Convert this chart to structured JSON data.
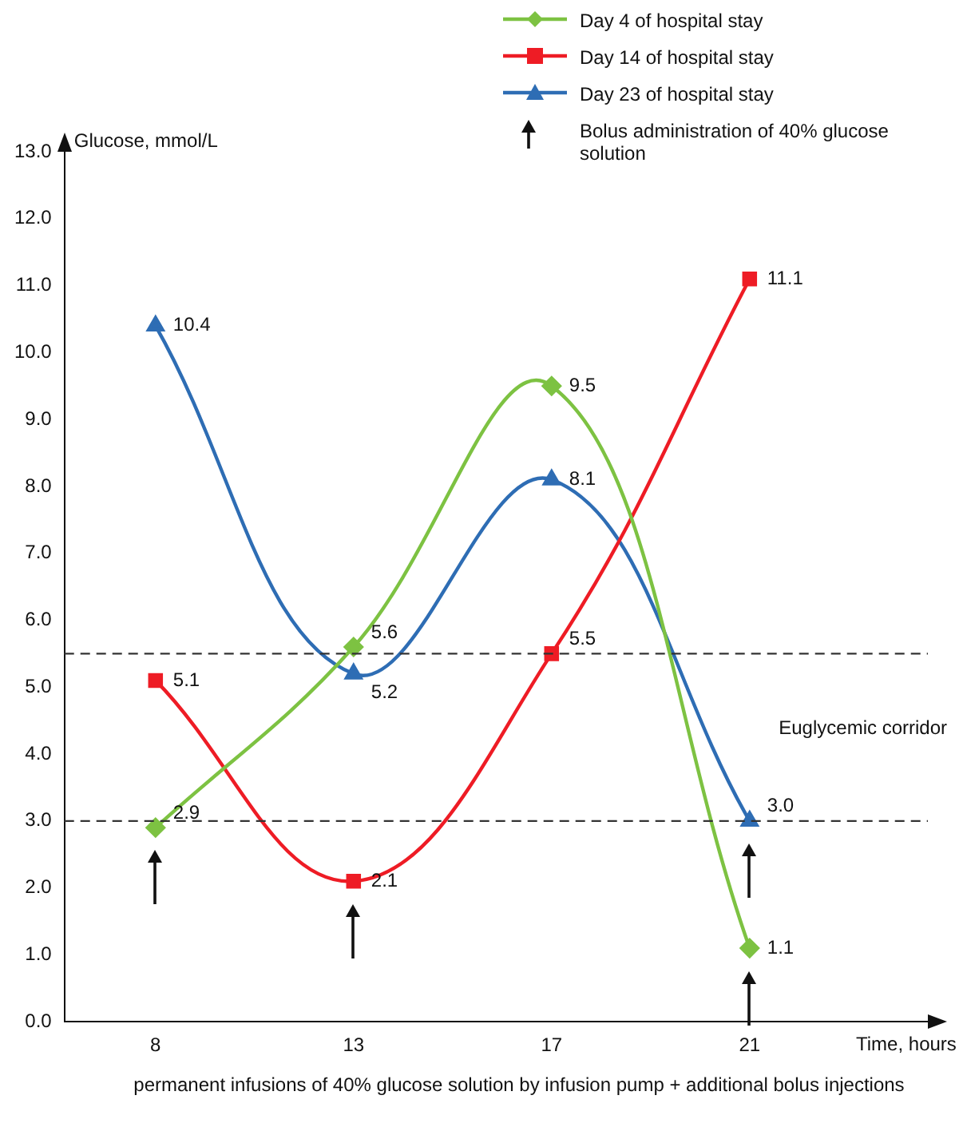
{
  "chart_data": {
    "type": "line",
    "ylabel": "Glucose, mmol/L",
    "xlabel": "Time, hours",
    "categories": [
      "8",
      "13",
      "17",
      "21"
    ],
    "series": [
      {
        "name": "Day 4 of hospital stay",
        "color": "#7dc242",
        "marker": "diamond",
        "values": [
          2.9,
          5.6,
          9.5,
          1.1
        ],
        "value_labels": [
          "2.9",
          "5.6",
          "9.5",
          "1.1"
        ]
      },
      {
        "name": "Day 14 of hospital stay",
        "color": "#ee1c25",
        "marker": "square",
        "values": [
          5.1,
          2.1,
          5.5,
          11.1
        ],
        "value_labels": [
          "5.1",
          "2.1",
          "5.5",
          "11.1"
        ]
      },
      {
        "name": "Day 23 of hospital stay",
        "color": "#2e6db4",
        "marker": "triangle",
        "values": [
          10.4,
          5.2,
          8.1,
          3.0
        ],
        "value_labels": [
          "10.4",
          "5.2",
          "8.1",
          "3.0"
        ]
      }
    ],
    "ylim": [
      0,
      13
    ],
    "yticks": [
      {
        "value": 0,
        "label": "0.0"
      },
      {
        "value": 1,
        "label": "1.0"
      },
      {
        "value": 2,
        "label": "2.0"
      },
      {
        "value": 3,
        "label": "3.0"
      },
      {
        "value": 4,
        "label": "4.0"
      },
      {
        "value": 5,
        "label": "5.0"
      },
      {
        "value": 6,
        "label": "6.0"
      },
      {
        "value": 7,
        "label": "7.0"
      },
      {
        "value": 8,
        "label": "8.0"
      },
      {
        "value": 9,
        "label": "9.0"
      },
      {
        "value": 10,
        "label": "10.0"
      },
      {
        "value": 11,
        "label": "11.0"
      },
      {
        "value": 12,
        "label": "12.0"
      },
      {
        "value": 13,
        "label": "13.0"
      }
    ],
    "ref_lines": [
      {
        "axis": "y",
        "value": 5.5,
        "line_style": "dashed",
        "color": "#333333"
      },
      {
        "axis": "y",
        "value": 3.0,
        "line_style": "dashed",
        "color": "#333333"
      }
    ],
    "annotations": [
      "Euglycemic corridor",
      "Bolus administration of 40% glucose solution",
      "permanent infusions of 40% glucose solution by infusion pump + additional bolus injections"
    ],
    "legend": "top right",
    "grid": false
  }
}
